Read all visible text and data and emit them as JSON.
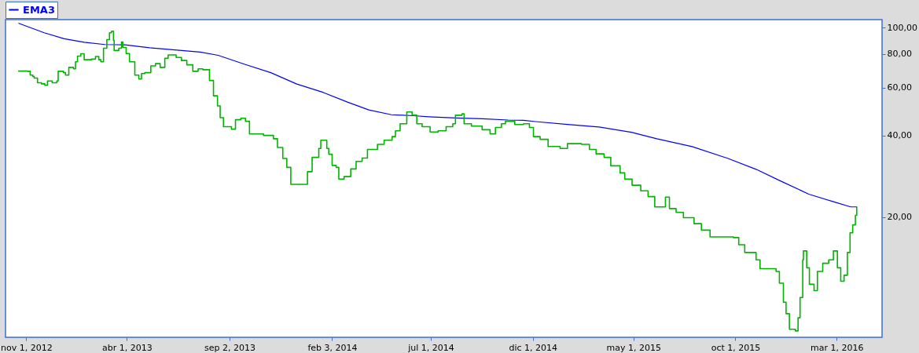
{
  "chart_data": {
    "type": "line",
    "series": [
      {
        "name": "EMA3",
        "color": "#0000ff",
        "x": [
          "2012-10-21",
          "2012-11-28",
          "2012-12-28",
          "2013-01-27",
          "2013-02-27",
          "2013-03-29",
          "2013-05-05",
          "2013-06-12",
          "2013-07-20",
          "2013-08-16",
          "2013-09-25",
          "2013-11-03",
          "2013-12-12",
          "2014-01-21",
          "2014-02-26",
          "2014-03-30",
          "2014-05-03",
          "2014-06-05",
          "2014-06-28",
          "2014-08-07",
          "2014-09-16",
          "2014-10-25",
          "2014-11-17",
          "2014-12-05",
          "2015-01-22",
          "2015-03-10",
          "2015-04-28",
          "2015-06-05",
          "2015-07-28",
          "2015-09-20",
          "2015-11-01",
          "2015-12-10",
          "2016-01-19",
          "2016-02-27",
          "2016-03-22",
          "2016-03-31"
        ],
        "values": [
          103.7,
          95.7,
          91.0,
          88.3,
          86.6,
          86.4,
          84.3,
          82.7,
          81.2,
          79.0,
          73.2,
          68.2,
          61.9,
          57.6,
          53.1,
          49.7,
          47.7,
          47.3,
          46.9,
          46.4,
          46.1,
          45.6,
          45.5,
          45.0,
          43.9,
          43.0,
          41.1,
          38.9,
          36.4,
          32.9,
          30.0,
          27.0,
          24.3,
          22.7,
          21.8,
          21.8
        ]
      },
      {
        "color": "#00b400",
        "type": "step",
        "x": [
          "2012-10-20",
          "2012-11-03",
          "2012-11-07",
          "2012-11-11",
          "2012-11-13",
          "2012-11-18",
          "2012-11-24",
          "2012-11-29",
          "2012-12-03",
          "2012-12-10",
          "2012-12-17",
          "2012-12-19",
          "2012-12-27",
          "2012-12-30",
          "2013-01-04",
          "2013-01-11",
          "2013-01-14",
          "2013-01-17",
          "2013-01-22",
          "2013-01-27",
          "2013-02-07",
          "2013-02-13",
          "2013-02-18",
          "2013-02-21",
          "2013-02-25",
          "2013-03-02",
          "2013-03-06",
          "2013-03-09",
          "2013-03-12",
          "2013-03-13",
          "2013-03-20",
          "2013-03-24",
          "2013-03-26",
          "2013-03-31",
          "2013-04-05",
          "2013-04-09",
          "2013-04-13",
          "2013-04-19",
          "2013-04-23",
          "2013-04-28",
          "2013-05-07",
          "2013-05-14",
          "2013-05-21",
          "2013-05-28",
          "2013-06-02",
          "2013-06-14",
          "2013-06-22",
          "2013-06-30",
          "2013-07-09",
          "2013-07-17",
          "2013-07-24",
          "2013-08-03",
          "2013-08-09",
          "2013-08-15",
          "2013-08-19",
          "2013-08-24",
          "2013-09-05",
          "2013-09-11",
          "2013-09-19",
          "2013-09-26",
          "2013-10-02",
          "2013-10-23",
          "2013-11-07",
          "2013-11-13",
          "2013-11-21",
          "2013-11-27",
          "2013-12-03",
          "2013-12-23",
          "2013-12-28",
          "2014-01-04",
          "2014-01-14",
          "2014-01-17",
          "2014-01-26",
          "2014-01-29",
          "2014-02-03",
          "2014-02-09",
          "2014-02-13",
          "2014-02-21",
          "2014-03-03",
          "2014-03-11",
          "2014-03-20",
          "2014-03-28",
          "2014-04-12",
          "2014-04-22",
          "2014-05-04",
          "2014-05-09",
          "2014-05-16",
          "2014-05-26",
          "2014-06-03",
          "2014-06-10",
          "2014-06-18",
          "2014-06-30",
          "2014-07-12",
          "2014-07-24",
          "2014-08-03",
          "2014-08-07",
          "2014-08-17",
          "2014-08-20",
          "2014-08-31",
          "2014-09-16",
          "2014-09-28",
          "2014-10-06",
          "2014-10-15",
          "2014-10-21",
          "2014-11-04",
          "2014-11-17",
          "2014-11-26",
          "2014-12-02",
          "2014-12-12",
          "2014-12-24",
          "2015-01-11",
          "2015-01-22",
          "2015-02-12",
          "2015-02-24",
          "2015-03-06",
          "2015-03-18",
          "2015-03-28",
          "2015-04-11",
          "2015-04-18",
          "2015-04-29",
          "2015-05-12",
          "2015-05-23",
          "2015-06-02",
          "2015-06-18",
          "2015-06-24",
          "2015-07-04",
          "2015-07-15",
          "2015-07-31",
          "2015-08-11",
          "2015-08-24",
          "2015-09-28",
          "2015-10-06",
          "2015-10-15",
          "2015-10-27",
          "2015-11-01",
          "2015-11-07",
          "2015-12-01",
          "2015-12-06",
          "2015-12-12",
          "2015-12-16",
          "2015-12-21",
          "2015-12-30",
          "2016-01-03",
          "2016-01-06",
          "2016-01-10",
          "2016-01-11",
          "2016-01-16",
          "2016-01-20",
          "2016-01-27",
          "2016-02-01",
          "2016-02-09",
          "2016-02-18",
          "2016-02-25",
          "2016-03-02",
          "2016-03-07",
          "2016-03-12",
          "2016-03-17",
          "2016-03-21",
          "2016-03-25",
          "2016-03-29",
          "2016-03-31"
        ],
        "values": [
          69.1,
          69.0,
          66.8,
          66.0,
          65.1,
          62.6,
          62.0,
          61.3,
          63.5,
          62.6,
          63.5,
          69.0,
          68.2,
          66.8,
          71.3,
          70.4,
          74.8,
          78.5,
          80.1,
          76.1,
          76.5,
          78.2,
          76.1,
          74.8,
          83.9,
          90.3,
          95.7,
          97.0,
          89.7,
          82.3,
          83.9,
          88.5,
          84.5,
          80.2,
          74.8,
          74.8,
          66.8,
          64.6,
          67.7,
          68.2,
          72.2,
          73.6,
          71.3,
          77.1,
          79.3,
          77.6,
          75.6,
          72.9,
          69.0,
          70.4,
          69.9,
          63.8,
          56.0,
          51.4,
          46.5,
          43.1,
          42.2,
          45.7,
          46.3,
          45.1,
          40.5,
          40.0,
          38.9,
          36.1,
          32.9,
          30.5,
          26.4,
          26.4,
          29.4,
          33.2,
          35.8,
          38.4,
          35.8,
          34.1,
          31.0,
          30.5,
          27.6,
          28.2,
          30.1,
          32.1,
          33.0,
          35.5,
          37.1,
          38.4,
          39.6,
          41.6,
          44.2,
          48.8,
          47.5,
          44.2,
          43.1,
          41.2,
          41.6,
          43.1,
          44.2,
          47.5,
          48.1,
          44.2,
          43.3,
          42.0,
          40.5,
          42.8,
          44.2,
          45.1,
          43.9,
          44.2,
          42.8,
          39.6,
          38.7,
          36.4,
          35.8,
          37.3,
          37.1,
          35.5,
          34.2,
          33.2,
          30.9,
          29.1,
          27.6,
          26.2,
          25.0,
          23.8,
          21.8,
          23.7,
          21.5,
          20.8,
          19.9,
          18.9,
          17.9,
          16.9,
          16.8,
          15.8,
          14.8,
          14.8,
          13.9,
          12.9,
          12.6,
          11.4,
          9.7,
          8.8,
          7.71,
          7.6,
          8.5,
          10.1,
          13.9,
          15.0,
          13.0,
          11.3,
          10.7,
          12.6,
          13.5,
          13.9,
          15.0,
          13.0,
          11.6,
          12.2,
          14.8,
          17.5,
          18.7,
          20.3,
          21.8
        ]
      }
    ],
    "xlim": [
      "2012-10-01",
      "2016-05-08"
    ],
    "xticks": [
      {
        "value": "2012-11-01",
        "label": "nov 1, 2012"
      },
      {
        "value": "2013-04-01",
        "label": "abr 1, 2013"
      },
      {
        "value": "2013-09-02",
        "label": "sep 2, 2013"
      },
      {
        "value": "2014-02-03",
        "label": "feb 3, 2014"
      },
      {
        "value": "2014-07-01",
        "label": "jul 1, 2014"
      },
      {
        "value": "2014-12-01",
        "label": "dic 1, 2014"
      },
      {
        "value": "2015-05-01",
        "label": "may 1, 2015"
      },
      {
        "value": "2015-10-01",
        "label": "oct 1, 2015"
      },
      {
        "value": "2016-03-01",
        "label": "mar 1, 2016"
      }
    ],
    "ylim": [
      7.2,
      107
    ],
    "yticks": [
      {
        "value": 20,
        "label": "20,00"
      },
      {
        "value": 40,
        "label": "40,00"
      },
      {
        "value": 60,
        "label": "60,00"
      },
      {
        "value": 80,
        "label": "80,00"
      },
      {
        "value": 100,
        "label": "100,00"
      }
    ],
    "log": true,
    "legend": "top left"
  }
}
